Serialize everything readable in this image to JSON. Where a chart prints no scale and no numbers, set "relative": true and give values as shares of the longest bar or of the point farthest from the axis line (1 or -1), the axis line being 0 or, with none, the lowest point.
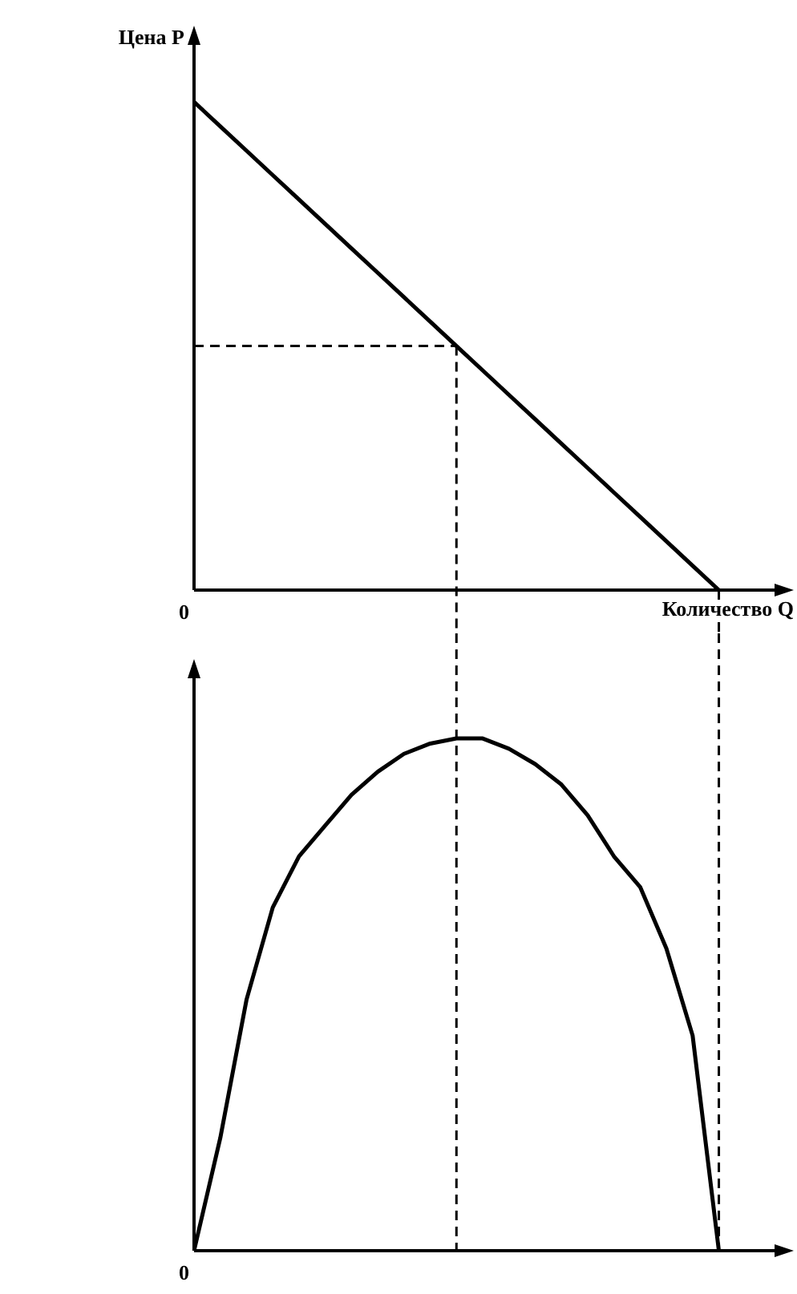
{
  "chart_data": [
    {
      "type": "line",
      "relative": true,
      "ylabel": "Цена P",
      "xlabel": "Количество Q",
      "annotations": [
        "0"
      ],
      "categories": [
        null,
        null,
        null,
        null,
        null,
        null,
        null,
        null,
        null,
        null,
        null,
        null,
        null,
        null,
        null,
        null,
        null,
        null,
        null,
        null,
        null,
        null,
        null
      ],
      "series": [
        {
          "values": [
            1,
            0.95,
            0.9,
            0.85,
            0.8,
            0.75,
            0.7,
            0.65,
            0.6,
            0.55,
            0.5,
            0.45,
            0.4,
            0.35,
            0.3,
            0.25,
            0.2,
            0.15,
            0.1,
            0.05,
            0,
            null,
            null
          ],
          "color": "#000000"
        },
        {
          "values": [
            0.5,
            0.5,
            0.5,
            0.5,
            0.5,
            0.5,
            0.5,
            0.5,
            0.5,
            0.5,
            0.5,
            null,
            null,
            null,
            null,
            null,
            null,
            null,
            null,
            null,
            null,
            null,
            null
          ],
          "color": "#000000",
          "line_style": "dashed"
        }
      ]
    },
    {
      "type": "line",
      "relative": true,
      "annotations": [
        "0"
      ],
      "categories": [
        null,
        null,
        null,
        null,
        null,
        null,
        null,
        null,
        null,
        null,
        null,
        null,
        null,
        null,
        null,
        null,
        null,
        null,
        null,
        null,
        null,
        null,
        null
      ],
      "series": [
        {
          "values": [
            0,
            0.22,
            0.49,
            0.67,
            0.77,
            0.83,
            0.89,
            0.935,
            0.97,
            0.99,
            1,
            1,
            0.98,
            0.95,
            0.91,
            0.85,
            0.77,
            0.71,
            0.59,
            0.42,
            0,
            null,
            null
          ],
          "color": "#000000"
        }
      ]
    }
  ]
}
